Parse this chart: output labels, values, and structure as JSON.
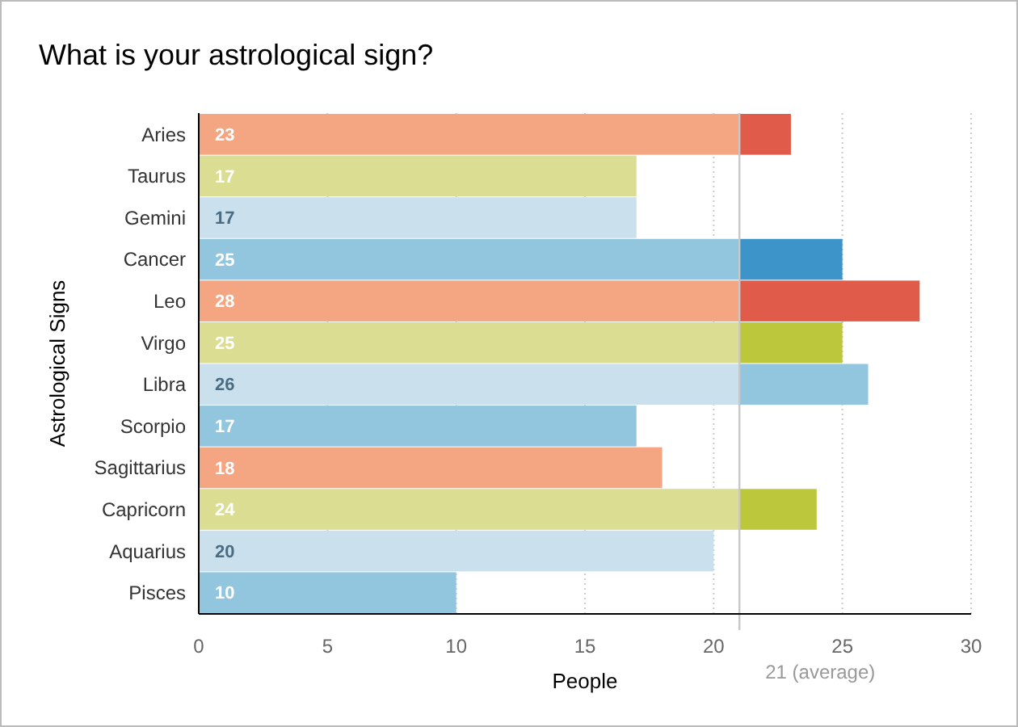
{
  "chart_data": {
    "type": "bar",
    "orientation": "horizontal",
    "stacked": true,
    "title": "What is your astrological sign?",
    "xlabel": "People",
    "ylabel": "Astrological Signs",
    "categories": [
      "Aries",
      "Taurus",
      "Gemini",
      "Cancer",
      "Leo",
      "Virgo",
      "Libra",
      "Scorpio",
      "Sagittarius",
      "Capricorn",
      "Aquarius",
      "Pisces"
    ],
    "series": [
      {
        "colors": [
          "#f4a582",
          "#dbdd92",
          "#cae0ec",
          "#92c5de",
          "#f4a582",
          "#dbdd92",
          "#cae0ec",
          "#92c5de",
          "#f4a582",
          "#dbdd92",
          "#cae0ec",
          "#92c5de"
        ],
        "values": [
          21,
          17,
          17,
          21,
          21,
          21,
          21,
          17,
          18,
          21,
          20,
          10
        ]
      },
      {
        "colors": [
          "#e05b4a",
          null,
          null,
          "#3c94c9",
          "#e05b4a",
          "#bdc73b",
          "#92c5de",
          null,
          null,
          "#bdc73b",
          null,
          null
        ],
        "values": [
          2,
          null,
          null,
          4,
          7,
          4,
          5,
          null,
          null,
          3,
          null,
          null
        ]
      }
    ],
    "totals": [
      "23",
      "17",
      "17",
      "25",
      "28",
      "25",
      "26",
      "17",
      "18",
      "24",
      "20",
      "10"
    ],
    "xlim": [
      0,
      30
    ],
    "xticks": [
      0,
      5,
      10,
      15,
      20,
      25,
      30
    ],
    "grid": "x",
    "ref_lines": [
      {
        "axis": "x",
        "value": 21,
        "label": "21 (average)",
        "color": "#c8c8c8"
      }
    ]
  }
}
